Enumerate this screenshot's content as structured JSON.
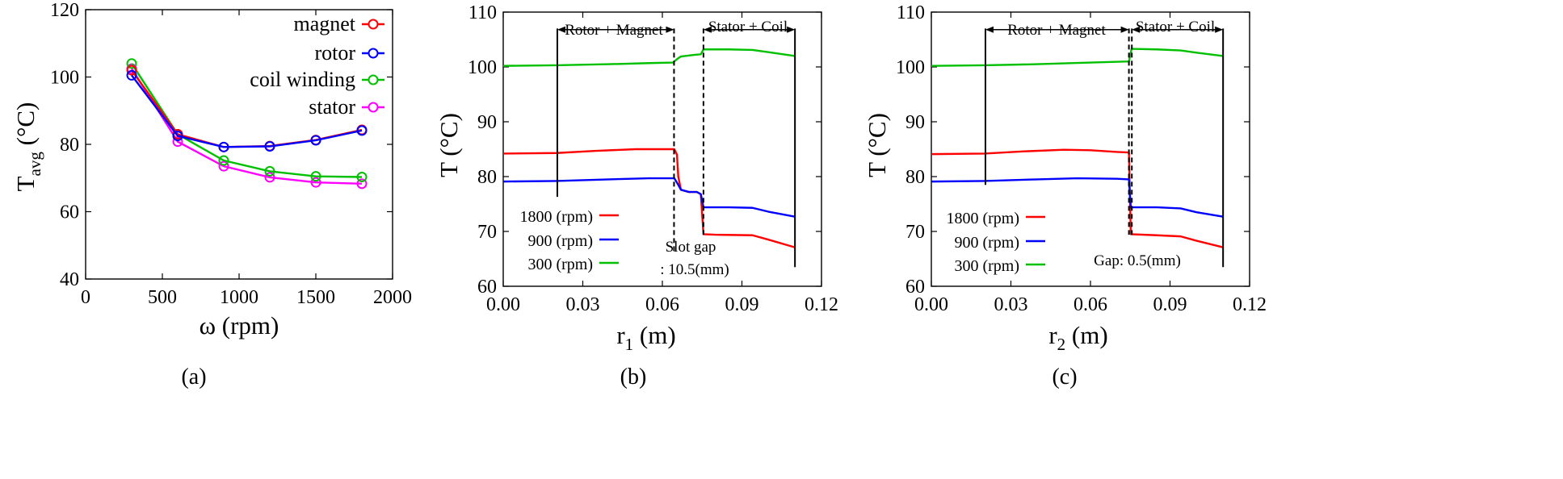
{
  "colors": {
    "magnet": "#ff0000",
    "rotor": "#0000ff",
    "coil": "#00c000",
    "stator": "#ff00ff",
    "red": "#ff0000",
    "blue": "#0000ff",
    "green": "#00c000"
  },
  "chart_data": [
    {
      "id": "a",
      "type": "line",
      "caption": "(a)",
      "xlabel": {
        "main": "ω (rpm)"
      },
      "ylabel": {
        "main": "T",
        "sub": "avg",
        "unit": " (°C)"
      },
      "xlim": [
        0,
        2000
      ],
      "ylim": [
        40,
        120
      ],
      "xticks": [
        "0",
        "500",
        "1000",
        "1500",
        "2000"
      ],
      "yticks": [
        "40",
        "60",
        "80",
        "100",
        "120"
      ],
      "x": [
        300,
        600,
        900,
        1200,
        1500,
        1800
      ],
      "series": [
        {
          "name": "magnet",
          "color_key": "magnet",
          "values": [
            102,
            83,
            79.2,
            79.5,
            81.3,
            84.3
          ]
        },
        {
          "name": "rotor",
          "color_key": "rotor",
          "values": [
            100.5,
            82.5,
            79.2,
            79.4,
            81.2,
            84.1
          ]
        },
        {
          "name": "coil winding",
          "color_key": "coil",
          "values": [
            104,
            83,
            75.2,
            72,
            70.5,
            70.3
          ]
        },
        {
          "name": "stator",
          "color_key": "stator",
          "values": [
            102.5,
            80.8,
            73.5,
            70.2,
            68.7,
            68.3
          ]
        }
      ],
      "legend_position": "top-right"
    },
    {
      "id": "b",
      "type": "line",
      "caption": "(b)",
      "xlabel": {
        "main": "r",
        "sub": "1",
        "unit": " (m)"
      },
      "ylabel": {
        "main": "T (°C)"
      },
      "xlim": [
        0,
        0.12
      ],
      "ylim": [
        60,
        110
      ],
      "xticks": [
        "0.00",
        "0.03",
        "0.06",
        "0.09",
        "0.12"
      ],
      "yticks": [
        "60",
        "70",
        "80",
        "90",
        "100",
        "110"
      ],
      "series": [
        {
          "name": "1800 (rpm)",
          "color_key": "red",
          "points": [
            [
              0,
              84.2
            ],
            [
              0.02,
              84.3
            ],
            [
              0.035,
              84.7
            ],
            [
              0.05,
              85.0
            ],
            [
              0.0645,
              85.0
            ],
            [
              0.0655,
              84
            ],
            [
              0.066,
              80
            ],
            [
              0.067,
              77.6
            ],
            [
              0.07,
              77.2
            ],
            [
              0.073,
              77.2
            ],
            [
              0.0745,
              76.8
            ],
            [
              0.0755,
              69.5
            ],
            [
              0.08,
              69.4
            ],
            [
              0.094,
              69.3
            ],
            [
              0.1,
              68.5
            ],
            [
              0.11,
              67.1
            ]
          ]
        },
        {
          "name": "900 (rpm)",
          "color_key": "blue",
          "points": [
            [
              0,
              79.1
            ],
            [
              0.02,
              79.2
            ],
            [
              0.04,
              79.5
            ],
            [
              0.055,
              79.7
            ],
            [
              0.0645,
              79.7
            ],
            [
              0.066,
              78.5
            ],
            [
              0.067,
              77.6
            ],
            [
              0.07,
              77.2
            ],
            [
              0.073,
              77.2
            ],
            [
              0.0745,
              76.8
            ],
            [
              0.0755,
              74.4
            ],
            [
              0.085,
              74.4
            ],
            [
              0.094,
              74.3
            ],
            [
              0.1,
              73.6
            ],
            [
              0.11,
              72.7
            ]
          ]
        },
        {
          "name": "300 (rpm)",
          "color_key": "green",
          "points": [
            [
              0,
              100.2
            ],
            [
              0.02,
              100.3
            ],
            [
              0.04,
              100.5
            ],
            [
              0.055,
              100.7
            ],
            [
              0.064,
              100.8
            ],
            [
              0.066,
              101.6
            ],
            [
              0.067,
              101.9
            ],
            [
              0.072,
              102.2
            ],
            [
              0.0745,
              102.3
            ],
            [
              0.0755,
              103.2
            ],
            [
              0.085,
              103.2
            ],
            [
              0.094,
              103.1
            ],
            [
              0.1,
              102.7
            ],
            [
              0.11,
              102.0
            ]
          ]
        }
      ],
      "markers": {
        "solid": [
          0.0204,
          0.11
        ],
        "dashed": [
          0.0644,
          0.0755
        ],
        "solid_bottom": [
          76.3,
          63.5
        ],
        "dashed_bottom": [
          66.2,
          69.4
        ]
      },
      "annotations": {
        "left": "Rotor + Magnet",
        "right": "Stator + Coil",
        "gap_line1": "Slot gap",
        "gap_line2": ": 10.5(mm)"
      },
      "legend_position": "bottom-left"
    },
    {
      "id": "c",
      "type": "line",
      "caption": "(c)",
      "xlabel": {
        "main": "r",
        "sub": "2",
        "unit": " (m)"
      },
      "ylabel": {
        "main": "T (°C)"
      },
      "xlim": [
        0,
        0.12
      ],
      "ylim": [
        60,
        110
      ],
      "xticks": [
        "0.00",
        "0.03",
        "0.06",
        "0.09",
        "0.12"
      ],
      "yticks": [
        "60",
        "70",
        "80",
        "90",
        "100",
        "110"
      ],
      "series": [
        {
          "name": "1800 (rpm)",
          "color_key": "red",
          "points": [
            [
              0,
              84.1
            ],
            [
              0.02,
              84.2
            ],
            [
              0.035,
              84.6
            ],
            [
              0.05,
              84.9
            ],
            [
              0.06,
              84.8
            ],
            [
              0.07,
              84.5
            ],
            [
              0.0745,
              84.4
            ],
            [
              0.0752,
              69.5
            ],
            [
              0.085,
              69.3
            ],
            [
              0.094,
              69.1
            ],
            [
              0.1,
              68.3
            ],
            [
              0.11,
              67.1
            ]
          ]
        },
        {
          "name": "900 (rpm)",
          "color_key": "blue",
          "points": [
            [
              0,
              79.1
            ],
            [
              0.02,
              79.2
            ],
            [
              0.04,
              79.5
            ],
            [
              0.055,
              79.7
            ],
            [
              0.07,
              79.6
            ],
            [
              0.0745,
              79.5
            ],
            [
              0.0752,
              74.4
            ],
            [
              0.085,
              74.4
            ],
            [
              0.094,
              74.2
            ],
            [
              0.1,
              73.5
            ],
            [
              0.11,
              72.7
            ]
          ]
        },
        {
          "name": "300 (rpm)",
          "color_key": "green",
          "points": [
            [
              0,
              100.2
            ],
            [
              0.02,
              100.3
            ],
            [
              0.04,
              100.5
            ],
            [
              0.06,
              100.8
            ],
            [
              0.0745,
              101.0
            ],
            [
              0.0755,
              103.3
            ],
            [
              0.085,
              103.2
            ],
            [
              0.094,
              103.0
            ],
            [
              0.1,
              102.6
            ],
            [
              0.11,
              102.0
            ]
          ]
        }
      ],
      "markers": {
        "solid": [
          0.0204,
          0.11
        ],
        "dashed": [
          0.0745,
          0.0756
        ],
        "solid_bottom": [
          78.5,
          63.5
        ],
        "dashed_bottom": [
          69.4,
          69.4
        ]
      },
      "annotations": {
        "left": "Rotor + Magnet",
        "right": "Stator + Coil",
        "gap_line1": "Gap: 0.5(mm)",
        "gap_line2": ""
      },
      "legend_position": "bottom-left"
    }
  ]
}
